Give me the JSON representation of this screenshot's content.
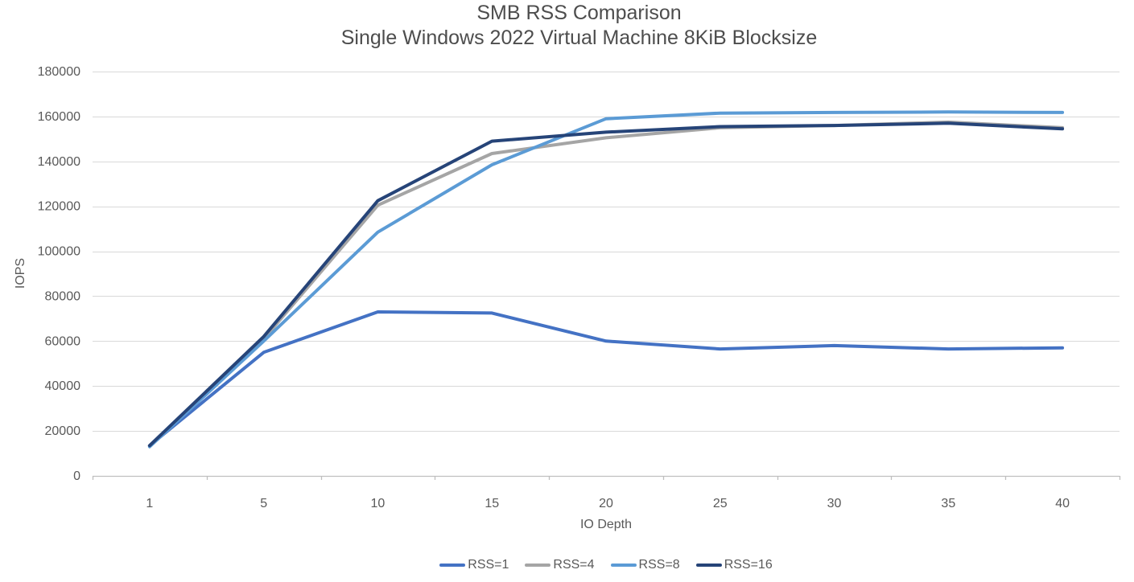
{
  "chart_data": {
    "type": "line",
    "title": "SMB RSS Comparison",
    "subtitle": "Single Windows 2022 Virtual Machine 8KiB Blocksize",
    "xlabel": "IO Depth",
    "ylabel": "IOPS",
    "categories": [
      1,
      5,
      10,
      15,
      20,
      25,
      30,
      35,
      40
    ],
    "series": [
      {
        "name": "RSS=1",
        "color": "#4472C4",
        "values": [
          13500,
          55000,
          73000,
          72500,
          60000,
          56500,
          58000,
          56500,
          57000
        ]
      },
      {
        "name": "RSS=4",
        "color": "#A5A5A5",
        "values": [
          13500,
          61000,
          120500,
          143500,
          150500,
          155000,
          156000,
          157500,
          155000
        ]
      },
      {
        "name": "RSS=8",
        "color": "#5B9BD5",
        "values": [
          13000,
          60000,
          108500,
          138500,
          159000,
          161500,
          161800,
          162000,
          161800
        ]
      },
      {
        "name": "RSS=16",
        "color": "#264478",
        "values": [
          13500,
          62000,
          122500,
          149000,
          153000,
          155500,
          156000,
          157000,
          154500
        ]
      }
    ],
    "ylim": [
      0,
      180000
    ],
    "yticks": [
      0,
      20000,
      40000,
      60000,
      80000,
      100000,
      120000,
      140000,
      160000,
      180000
    ],
    "grid": "horizontal",
    "legend_position": "bottom",
    "grid_color": "#D9D9D9",
    "axis_color": "#BFBFBF",
    "text_color": "#595959"
  }
}
